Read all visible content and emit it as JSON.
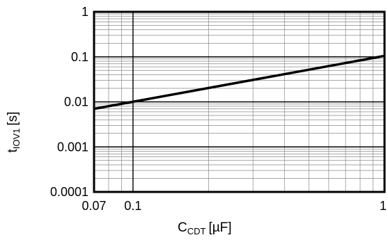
{
  "chart_data": {
    "type": "line",
    "xscale": "log",
    "yscale": "log",
    "xlim": [
      0.07,
      1
    ],
    "ylim": [
      0.0001,
      1
    ],
    "grid": true,
    "x_tick_labels": [
      "0.07",
      "0.1",
      "1"
    ],
    "x_tick_values": [
      0.07,
      0.1,
      1
    ],
    "y_tick_labels": [
      "1",
      "0.1",
      "0.01",
      "0.001",
      "0.0001"
    ],
    "y_tick_values": [
      1,
      0.1,
      0.01,
      0.001,
      0.0001
    ],
    "xlabel": {
      "main": "C",
      "sub": "CDT",
      "unit": "[µF]"
    },
    "ylabel": {
      "main": "t",
      "sub": "IOV1",
      "unit": "[s]"
    },
    "series": [
      {
        "x": [
          0.07,
          1
        ],
        "y": [
          0.007,
          0.105
        ]
      }
    ],
    "colors": {
      "line": "#000000",
      "grid": "#888888",
      "frame": "#000000"
    }
  }
}
